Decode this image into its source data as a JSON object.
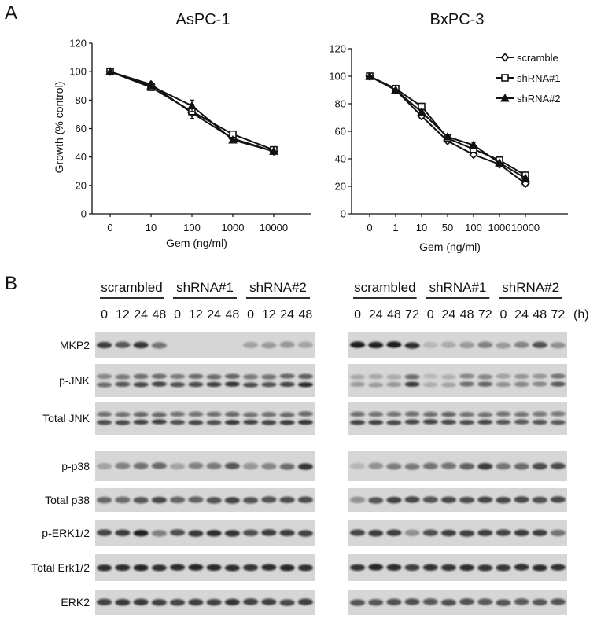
{
  "figure": {
    "panel_a": "A",
    "panel_b": "B"
  },
  "chart_data": [
    {
      "type": "line",
      "title": "AsPC-1",
      "ylabel": "Growth (% control)",
      "xlabel": "Gem (ng/ml)",
      "categories": [
        "0",
        "10",
        "100",
        "1000",
        "10000"
      ],
      "yticks": [
        "0",
        "20",
        "40",
        "60",
        "80",
        "100",
        "120"
      ],
      "ylim": [
        0,
        120
      ],
      "grid": false,
      "series": [
        {
          "name": "scramble",
          "marker": "diamond-open",
          "values": [
            100,
            91,
            71,
            53,
            44
          ],
          "errors": [
            0,
            0,
            4,
            0,
            0
          ]
        },
        {
          "name": "shRNA#1",
          "marker": "square-open",
          "values": [
            100,
            89,
            72,
            56,
            45
          ],
          "errors": [
            0,
            0,
            5,
            0,
            0
          ]
        },
        {
          "name": "shRNA#2",
          "marker": "triangle-filled",
          "values": [
            100,
            90,
            76,
            52,
            44
          ],
          "errors": [
            0,
            0,
            4,
            0,
            0
          ]
        }
      ]
    },
    {
      "type": "line",
      "title": "BxPC-3",
      "ylabel": "",
      "xlabel": "Gem (ng/ml)",
      "categories": [
        "0",
        "1",
        "10",
        "50",
        "100",
        "1000",
        "10000"
      ],
      "yticks": [
        "0",
        "20",
        "40",
        "60",
        "80",
        "100",
        "120"
      ],
      "ylim": [
        0,
        120
      ],
      "grid": false,
      "legend_position": "top-right",
      "series": [
        {
          "name": "scramble",
          "marker": "diamond-open",
          "values": [
            100,
            90,
            71,
            53,
            43,
            36,
            22
          ],
          "errors": [
            0,
            0,
            2,
            0,
            0,
            0,
            2
          ]
        },
        {
          "name": "shRNA#1",
          "marker": "square-open",
          "values": [
            100,
            91,
            78,
            55,
            47,
            39,
            28
          ],
          "errors": [
            0,
            0,
            2,
            0,
            0,
            0,
            0
          ]
        },
        {
          "name": "shRNA#2",
          "marker": "triangle-filled",
          "values": [
            100,
            90,
            74,
            56,
            50,
            37,
            26
          ],
          "errors": [
            0,
            0,
            2,
            0,
            2,
            0,
            0
          ]
        }
      ]
    }
  ],
  "blot": {
    "rows": [
      "MKP2",
      "p-JNK",
      "Total JNK",
      "p-p38",
      "Total p38",
      "p-ERK1/2",
      "Total Erk1/2",
      "ERK2"
    ],
    "left": {
      "groups": [
        "scrambled",
        "shRNA#1",
        "shRNA#2"
      ],
      "timepoints": [
        "0",
        "12",
        "24",
        "48",
        "0",
        "12",
        "24",
        "48",
        "0",
        "12",
        "24",
        "48"
      ]
    },
    "right": {
      "groups": [
        "scrambled",
        "shRNA#1",
        "shRNA#2"
      ],
      "timepoints": [
        "0",
        "24",
        "48",
        "72",
        "0",
        "24",
        "48",
        "72",
        "0",
        "24",
        "48",
        "72"
      ],
      "unit": "(h)"
    }
  }
}
